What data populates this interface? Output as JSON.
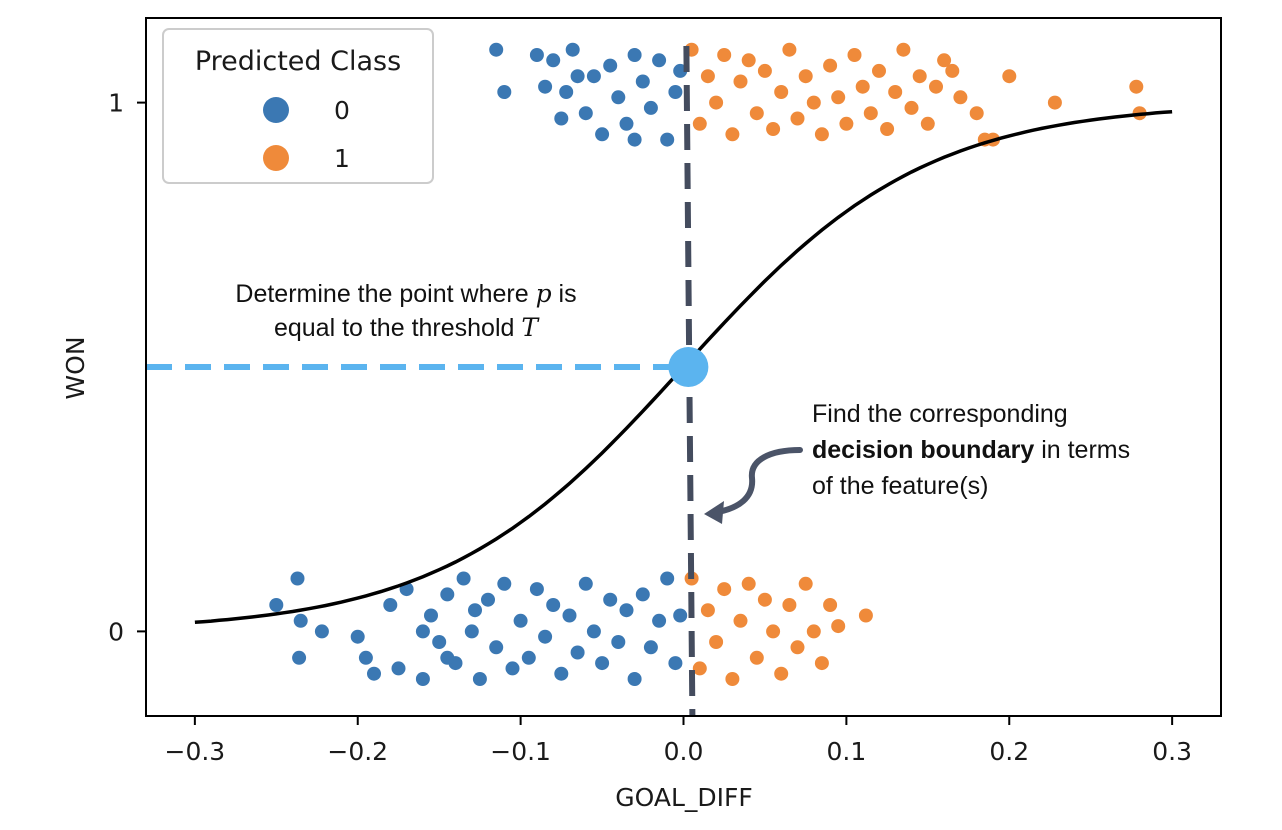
{
  "chart_data": {
    "type": "scatter",
    "xlabel": "GOAL_DIFF",
    "ylabel": "WON",
    "xlim": [
      -0.33,
      0.33
    ],
    "ylim": [
      -0.16,
      1.16
    ],
    "x_ticks": [
      -0.3,
      -0.2,
      -0.1,
      0.0,
      0.1,
      0.2,
      0.3
    ],
    "x_tick_labels": [
      "−0.3",
      "−0.2",
      "−0.1",
      "0.0",
      "0.1",
      "0.2",
      "0.3"
    ],
    "y_ticks": [
      0,
      1
    ],
    "y_tick_labels": [
      "0",
      "1"
    ],
    "grid": false,
    "legend": {
      "title": "Predicted Class",
      "placement": "top-left",
      "entries": [
        {
          "label": "0",
          "color": "#3b78b3"
        },
        {
          "label": "1",
          "color": "#ef8a3a"
        }
      ]
    },
    "jitter_band_halfwidth": 0.1,
    "series": [
      {
        "label": "0",
        "color": "#3b78b3",
        "points": [
          [
            -0.115,
            1.1
          ],
          [
            -0.11,
            1.02
          ],
          [
            -0.09,
            1.09
          ],
          [
            -0.085,
            1.03
          ],
          [
            -0.08,
            1.08
          ],
          [
            -0.072,
            1.02
          ],
          [
            -0.068,
            1.1
          ],
          [
            -0.06,
            0.98
          ],
          [
            -0.055,
            1.05
          ],
          [
            -0.05,
            0.94
          ],
          [
            -0.045,
            1.07
          ],
          [
            -0.04,
            1.01
          ],
          [
            -0.035,
            0.96
          ],
          [
            -0.03,
            1.09
          ],
          [
            -0.025,
            1.04
          ],
          [
            -0.02,
            0.99
          ],
          [
            -0.015,
            1.08
          ],
          [
            -0.01,
            0.93
          ],
          [
            -0.005,
            1.02
          ],
          [
            -0.002,
            1.06
          ],
          [
            -0.03,
            0.93
          ],
          [
            -0.065,
            1.05
          ],
          [
            -0.075,
            0.97
          ],
          [
            -0.25,
            0.05
          ],
          [
            -0.237,
            0.1
          ],
          [
            -0.236,
            -0.05
          ],
          [
            -0.235,
            0.02
          ],
          [
            -0.222,
            0.0
          ],
          [
            -0.2,
            -0.01
          ],
          [
            -0.195,
            -0.05
          ],
          [
            -0.19,
            -0.08
          ],
          [
            -0.18,
            0.05
          ],
          [
            -0.175,
            -0.07
          ],
          [
            -0.17,
            0.08
          ],
          [
            -0.16,
            -0.09
          ],
          [
            -0.155,
            0.03
          ],
          [
            -0.15,
            -0.02
          ],
          [
            -0.145,
            0.07
          ],
          [
            -0.14,
            -0.06
          ],
          [
            -0.135,
            0.1
          ],
          [
            -0.13,
            0.0
          ],
          [
            -0.125,
            -0.09
          ],
          [
            -0.12,
            0.06
          ],
          [
            -0.115,
            -0.03
          ],
          [
            -0.11,
            0.09
          ],
          [
            -0.105,
            -0.07
          ],
          [
            -0.1,
            0.02
          ],
          [
            -0.095,
            -0.05
          ],
          [
            -0.09,
            0.08
          ],
          [
            -0.085,
            -0.01
          ],
          [
            -0.08,
            0.05
          ],
          [
            -0.075,
            -0.08
          ],
          [
            -0.07,
            0.03
          ],
          [
            -0.065,
            -0.04
          ],
          [
            -0.06,
            0.09
          ],
          [
            -0.055,
            0.0
          ],
          [
            -0.05,
            -0.06
          ],
          [
            -0.045,
            0.06
          ],
          [
            -0.04,
            -0.02
          ],
          [
            -0.035,
            0.04
          ],
          [
            -0.03,
            -0.09
          ],
          [
            -0.025,
            0.07
          ],
          [
            -0.02,
            -0.03
          ],
          [
            -0.015,
            0.02
          ],
          [
            -0.01,
            0.1
          ],
          [
            -0.005,
            -0.06
          ],
          [
            -0.002,
            0.03
          ],
          [
            -0.16,
            0.0
          ],
          [
            -0.145,
            -0.05
          ],
          [
            -0.128,
            0.04
          ]
        ]
      },
      {
        "label": "1",
        "color": "#ef8a3a",
        "points": [
          [
            0.005,
            1.1
          ],
          [
            0.01,
            0.96
          ],
          [
            0.015,
            1.05
          ],
          [
            0.02,
            1.0
          ],
          [
            0.025,
            1.09
          ],
          [
            0.03,
            0.94
          ],
          [
            0.035,
            1.04
          ],
          [
            0.04,
            1.08
          ],
          [
            0.045,
            0.98
          ],
          [
            0.05,
            1.06
          ],
          [
            0.055,
            0.95
          ],
          [
            0.06,
            1.02
          ],
          [
            0.065,
            1.1
          ],
          [
            0.07,
            0.97
          ],
          [
            0.075,
            1.05
          ],
          [
            0.08,
            1.0
          ],
          [
            0.085,
            0.94
          ],
          [
            0.09,
            1.07
          ],
          [
            0.095,
            1.01
          ],
          [
            0.1,
            0.96
          ],
          [
            0.105,
            1.09
          ],
          [
            0.11,
            1.03
          ],
          [
            0.115,
            0.98
          ],
          [
            0.12,
            1.06
          ],
          [
            0.125,
            0.95
          ],
          [
            0.13,
            1.02
          ],
          [
            0.135,
            1.1
          ],
          [
            0.14,
            0.99
          ],
          [
            0.145,
            1.05
          ],
          [
            0.15,
            0.96
          ],
          [
            0.155,
            1.03
          ],
          [
            0.16,
            1.08
          ],
          [
            0.165,
            1.06
          ],
          [
            0.17,
            1.01
          ],
          [
            0.18,
            0.98
          ],
          [
            0.185,
            0.93
          ],
          [
            0.19,
            0.93
          ],
          [
            0.2,
            1.05
          ],
          [
            0.228,
            1.0
          ],
          [
            0.278,
            1.03
          ],
          [
            0.28,
            0.98
          ],
          [
            0.005,
            0.1
          ],
          [
            0.01,
            -0.07
          ],
          [
            0.015,
            0.04
          ],
          [
            0.02,
            -0.02
          ],
          [
            0.025,
            0.08
          ],
          [
            0.03,
            -0.09
          ],
          [
            0.035,
            0.02
          ],
          [
            0.04,
            0.09
          ],
          [
            0.045,
            -0.05
          ],
          [
            0.05,
            0.06
          ],
          [
            0.055,
            0.0
          ],
          [
            0.06,
            -0.08
          ],
          [
            0.065,
            0.05
          ],
          [
            0.07,
            -0.03
          ],
          [
            0.075,
            0.09
          ],
          [
            0.08,
            0.0
          ],
          [
            0.085,
            -0.06
          ],
          [
            0.09,
            0.05
          ],
          [
            0.095,
            0.01
          ],
          [
            0.112,
            0.03
          ]
        ]
      }
    ],
    "curve": {
      "type": "sigmoid",
      "x_range": [
        -0.3,
        0.3
      ],
      "x0": 0.0,
      "k": 13.5
    },
    "threshold_point": {
      "x": 0.003,
      "y": 0.5,
      "color": "#5bb4ef"
    },
    "decision_boundary": {
      "x": 0.003,
      "color": "#444c5e"
    },
    "annotations": {
      "threshold_line1_a": "Determine the point where ",
      "threshold_line1_var": "p",
      "threshold_line1_b": " is",
      "threshold_line2_a": "equal to the threshold ",
      "threshold_line2_var": "T",
      "boundary_line1": "Find the corresponding",
      "boundary_line2_bold": "decision boundary",
      "boundary_line2_rest": " in terms",
      "boundary_line3": "of the feature(s)"
    }
  }
}
